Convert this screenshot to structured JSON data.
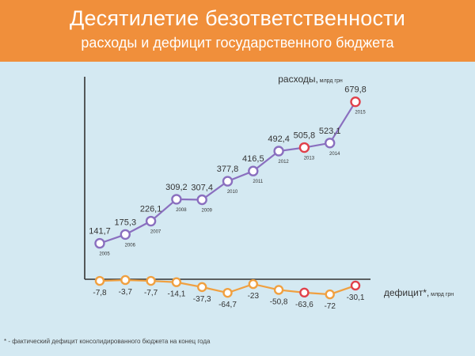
{
  "title": "Десятилетие безответственности",
  "subtitle": "расходы и дефицит государственного бюджета",
  "footnote": "* - фактический дефицит консолидированного бюджета на конец года",
  "colors": {
    "header_bg": "#f08f3b",
    "plot_bg": "#d4e9f2",
    "expenses_line": "#8a6fbf",
    "deficit_line": "#f0a040",
    "highlight_marker": "#e0404a",
    "axis": "#333333"
  },
  "chart_data": {
    "type": "line",
    "x": [
      "2005",
      "2006",
      "2007",
      "2008",
      "2009",
      "2010",
      "2011",
      "2012",
      "2013",
      "2014",
      "2015"
    ],
    "series": [
      {
        "name": "расходы",
        "label_main": "расходы,",
        "label_unit": " млрд грн",
        "values": [
          141.7,
          175.3,
          226.1,
          309.2,
          307.4,
          377.8,
          416.5,
          492.4,
          505.8,
          523.1,
          679.8
        ],
        "value_labels": [
          "141,7",
          "175,3",
          "226,1",
          "309,2",
          "307,4",
          "377,8",
          "416,5",
          "492,4",
          "505,8",
          "523,1",
          "679,8"
        ],
        "highlighted": [
          "2013",
          "2015"
        ]
      },
      {
        "name": "дефицит*",
        "label_main": "дефицит*,",
        "label_unit": " млрд грн",
        "values": [
          -7.8,
          -3.7,
          -7.7,
          -14.1,
          -37.3,
          -64.7,
          -23,
          -50.8,
          -63.6,
          -72,
          -30.1
        ],
        "value_labels": [
          "-7,8",
          "-3,7",
          "-7,7",
          "-14,1",
          "-37,3",
          "-64,7",
          "-23",
          "-50,8",
          "-63,6",
          "-72",
          "-30,1"
        ],
        "highlighted": [
          "2013",
          "2015"
        ]
      }
    ]
  }
}
